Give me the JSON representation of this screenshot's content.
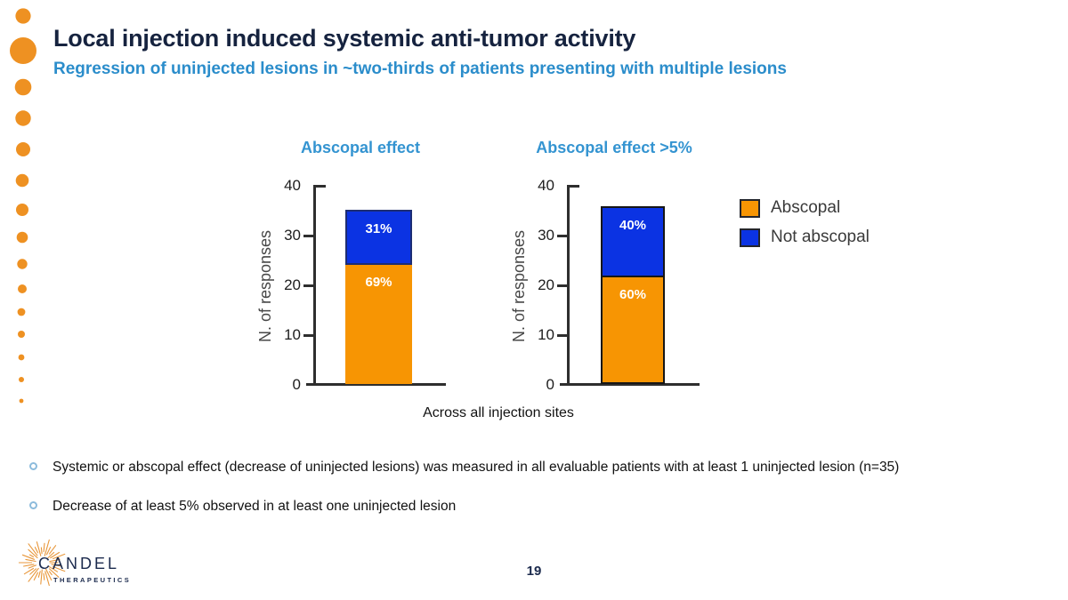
{
  "slide": {
    "title": "Local injection induced systemic anti-tumor activity",
    "subtitle": "Regression of uninjected lesions in ~two-thirds of patients presenting with multiple lesions",
    "caption": "Across all injection sites",
    "bullets": [
      "Systemic or abscopal effect (decrease of uninjected lesions) was measured in all evaluable patients with at least 1 uninjected lesion (n=35)",
      "Decrease of at least 5% observed in at least one uninjected lesion"
    ],
    "page_number": "19"
  },
  "logo": {
    "name": "CANDEL",
    "sub": "THERAPEUTICS"
  },
  "colors": {
    "abscopal_orange": "#F79503",
    "not_abscopal_blue": "#0B33E3",
    "title_navy": "#16233F",
    "subtitle_blue": "#2B8DCB",
    "chart_title_blue": "#3494D1",
    "dot_orange": "#EE9122",
    "axis": "#2E2E2E"
  },
  "legend": {
    "items": [
      {
        "label": "Abscopal",
        "color": "#F79503"
      },
      {
        "label": "Not abscopal",
        "color": "#0B33E3"
      }
    ]
  },
  "chart_data": [
    {
      "type": "bar",
      "title": "Abscopal effect",
      "ylabel": "N. of responses",
      "ylim": [
        0,
        40
      ],
      "yticks": [
        0,
        10,
        20,
        30,
        40
      ],
      "categories": [
        "Across all injection sites"
      ],
      "total": 35,
      "series": [
        {
          "name": "Abscopal",
          "value": 24,
          "label": "69%",
          "color": "#F79503"
        },
        {
          "name": "Not abscopal",
          "value": 11,
          "label": "31%",
          "color": "#0B33E3"
        }
      ],
      "legend_position": "right",
      "grid": false
    },
    {
      "type": "bar",
      "title": "Abscopal effect >5%",
      "ylabel": "N. of responses",
      "ylim": [
        0,
        40
      ],
      "yticks": [
        0,
        10,
        20,
        30,
        40
      ],
      "categories": [
        "Across all injection sites"
      ],
      "total": 35,
      "series": [
        {
          "name": "Abscopal",
          "value": 21,
          "label": "60%",
          "color": "#F79503"
        },
        {
          "name": "Not abscopal",
          "value": 14,
          "label": "40%",
          "color": "#0B33E3"
        }
      ],
      "legend_position": "right",
      "grid": false
    }
  ]
}
